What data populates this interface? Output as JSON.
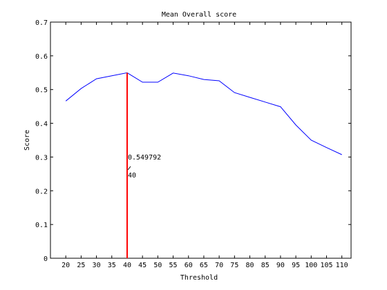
{
  "chart_data": {
    "type": "line",
    "title": "Mean Overall score",
    "xlabel": "Threshold",
    "ylabel": "Score",
    "x": [
      20,
      25,
      30,
      35,
      40,
      45,
      50,
      55,
      60,
      65,
      70,
      75,
      80,
      85,
      90,
      95,
      100,
      105,
      110
    ],
    "series": [
      {
        "values": [
          0.466,
          0.503,
          0.532,
          0.541,
          0.549792,
          0.522,
          0.522,
          0.549,
          0.541,
          0.53,
          0.526,
          0.491,
          0.477,
          0.463,
          0.449,
          0.395,
          0.35,
          0.328,
          0.307
        ],
        "color": "#0000ff"
      }
    ],
    "xlim": [
      15,
      113
    ],
    "ylim": [
      0,
      0.7
    ],
    "xticks": [
      "20",
      "25",
      "30",
      "35",
      "40",
      "45",
      "50",
      "55",
      "60",
      "65",
      "70",
      "75",
      "80",
      "85",
      "90",
      "95",
      "100",
      "105",
      "110"
    ],
    "yticks": [
      "0",
      "0.1",
      "0.2",
      "0.3",
      "0.4",
      "0.5",
      "0.6",
      "0.7"
    ],
    "grid": false,
    "marker_line": {
      "x": 40,
      "color": "#ff0000"
    },
    "annotation": {
      "y_text": "0.549792",
      "x_text": "40"
    }
  }
}
